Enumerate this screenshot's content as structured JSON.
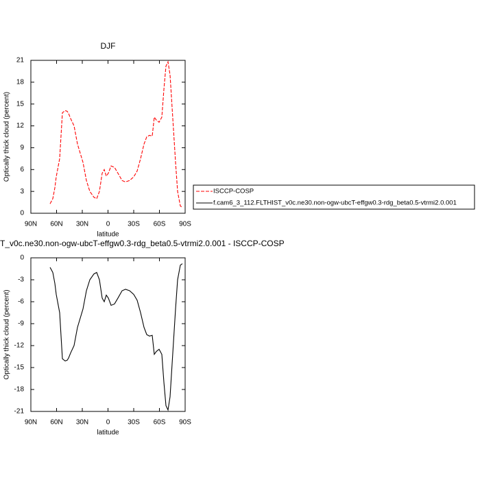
{
  "chart_data": [
    {
      "type": "line",
      "title": "DJF",
      "xlabel": "latitude",
      "ylabel": "Optically thick cloud (percent)",
      "x": [
        67.6,
        64.4,
        62,
        60.4,
        56.4,
        53.2,
        50,
        47.6,
        46,
        43.6,
        39.6,
        35.6,
        29.2,
        25.2,
        21.2,
        16.4,
        13.2,
        10,
        6.8,
        4.4,
        2,
        -0.4,
        -3.6,
        -7.6,
        -11.6,
        -16.4,
        -20.4,
        -25.2,
        -30,
        -34,
        -38,
        -42,
        -45.2,
        -48.4,
        -51.6,
        -54,
        -56.4,
        -59.6,
        -62.8,
        -65.2,
        -67.6,
        -70,
        -72.4,
        -75.6,
        -78.8,
        -81.2,
        -84.4,
        -86.8
      ],
      "series": [
        {
          "name": "ISCCP-COSP",
          "color": "#ff0000",
          "dash": true,
          "values": [
            1.3,
            2,
            3.5,
            5,
            7.5,
            13.8,
            14.1,
            14,
            13.7,
            13,
            12,
            9.5,
            7,
            4.5,
            3,
            2.2,
            2,
            3,
            5.5,
            6,
            5.1,
            5.5,
            6.5,
            6.3,
            5.5,
            4.5,
            4.3,
            4.5,
            5,
            5.8,
            7.5,
            9.5,
            10.5,
            10.7,
            10.6,
            13.2,
            12.8,
            12.5,
            13.2,
            17,
            20.2,
            20.8,
            19,
            13,
            7,
            3,
            1,
            0.8
          ]
        },
        {
          "name": "f.cam6_3_112.FLTHIST_v0c.ne30.non-ogw-ubcT-effgw0.3-rdg_beta0.5-vtrmi2.0.001",
          "color": "#000000",
          "dash": false,
          "values": [
            0,
            0,
            0,
            0,
            0,
            0,
            0,
            0,
            0,
            0,
            0,
            0,
            0,
            0,
            0,
            0,
            0,
            0,
            0,
            0,
            0,
            0,
            0,
            0,
            0,
            0,
            0,
            0,
            0,
            0,
            0,
            0,
            0,
            0,
            0,
            0,
            0,
            0,
            0,
            0,
            0,
            0,
            0,
            0,
            0,
            0,
            0,
            0
          ]
        }
      ],
      "legend": "right",
      "xlim": [
        90,
        -90
      ],
      "xticks": [
        {
          "value": 90,
          "label": "90N"
        },
        {
          "value": 60,
          "label": "60N"
        },
        {
          "value": 30,
          "label": "30N"
        },
        0,
        {
          "value": -30,
          "label": "30S"
        },
        {
          "value": -60,
          "label": "60S"
        },
        {
          "value": -90,
          "label": "90S"
        }
      ],
      "ylim": [
        0,
        21
      ],
      "yticks": [
        0,
        3,
        6,
        9,
        12,
        15,
        18,
        21
      ]
    },
    {
      "type": "line",
      "title": "T_v0c.ne30.non-ogw-ubcT-effgw0.3-rdg_beta0.5-vtrmi2.0.001 - ISCCP-COSP",
      "xlabel": "latitude",
      "ylabel": "Optically thick cloud (percent)",
      "x": [
        67.6,
        64.4,
        62,
        60.4,
        56.4,
        53.2,
        50,
        47.6,
        46,
        43.6,
        39.6,
        35.6,
        29.2,
        25.2,
        21.2,
        16.4,
        13.2,
        10,
        6.8,
        4.4,
        2,
        -0.4,
        -3.6,
        -7.6,
        -11.6,
        -16.4,
        -20.4,
        -25.2,
        -30,
        -34,
        -38,
        -42,
        -45.2,
        -48.4,
        -51.6,
        -54,
        -56.4,
        -59.6,
        -62.8,
        -65.2,
        -67.6,
        -70,
        -72.4,
        -75.6,
        -78.8,
        -81.2,
        -84.4,
        -86.8
      ],
      "series": [
        {
          "color": "#000000",
          "dash": false,
          "values": [
            -1.3,
            -2,
            -3.5,
            -5,
            -7.5,
            -13.8,
            -14.1,
            -14,
            -13.7,
            -13,
            -12,
            -9.5,
            -7,
            -4.5,
            -3,
            -2.2,
            -2,
            -3,
            -5.5,
            -6,
            -5.1,
            -5.5,
            -6.5,
            -6.3,
            -5.5,
            -4.5,
            -4.3,
            -4.5,
            -5,
            -5.8,
            -7.5,
            -9.5,
            -10.5,
            -10.7,
            -10.6,
            -13.2,
            -12.8,
            -12.5,
            -13.2,
            -17,
            -20.2,
            -20.8,
            -19,
            -13,
            -7,
            -3,
            -1,
            -0.8
          ]
        }
      ],
      "xlim": [
        90,
        -90
      ],
      "xticks": [
        {
          "value": 90,
          "label": "90N"
        },
        {
          "value": 60,
          "label": "60N"
        },
        {
          "value": 30,
          "label": "30N"
        },
        0,
        {
          "value": -30,
          "label": "30S"
        },
        {
          "value": -60,
          "label": "60S"
        },
        {
          "value": -90,
          "label": "90S"
        }
      ],
      "ylim": [
        -21,
        0
      ],
      "yticks": [
        -21,
        -18,
        -15,
        -12,
        -9,
        -6,
        -3,
        0
      ]
    }
  ]
}
